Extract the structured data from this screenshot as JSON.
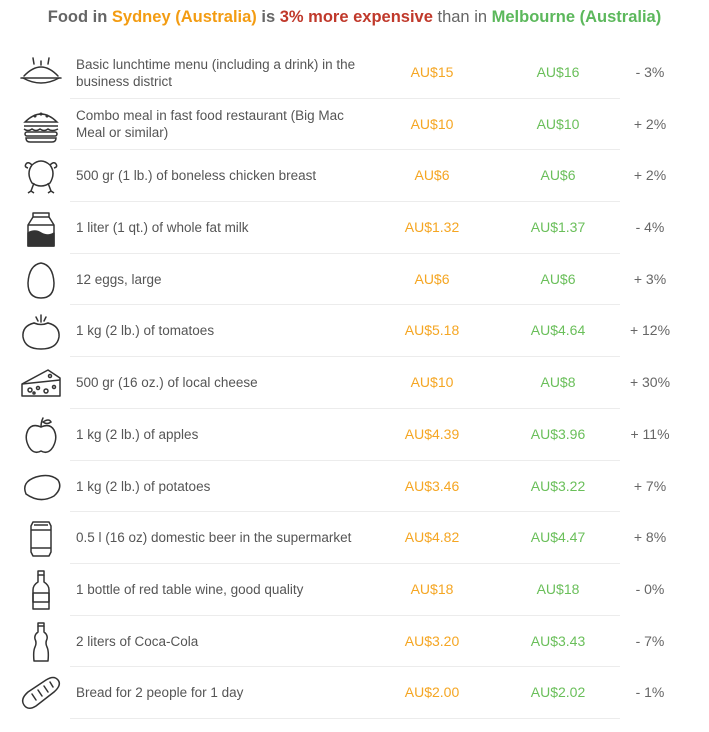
{
  "header": {
    "title_parts": {
      "p1": "Food in ",
      "city1": "Sydney (Australia)",
      "p2": " is ",
      "pct": "3% more expensive",
      "p3": " than in ",
      "city2": "Melbourne (Australia)"
    }
  },
  "colors": {
    "city1": "#f39c12",
    "city2": "#5cb85c",
    "emphasis": "#c0392b"
  },
  "rows": [
    {
      "icon": "lunch-plate-icon",
      "label": "Basic lunchtime menu (including a drink) in the business district",
      "price1": "AU$15",
      "price2": "AU$16",
      "diff": "- 3%"
    },
    {
      "icon": "burger-icon",
      "label": "Combo meal in fast food restaurant (Big Mac Meal or similar)",
      "price1": "AU$10",
      "price2": "AU$10",
      "diff": "+ 2%"
    },
    {
      "icon": "chicken-icon",
      "label": "500 gr (1 lb.) of boneless chicken breast",
      "price1": "AU$6",
      "price2": "AU$6",
      "diff": "+ 2%"
    },
    {
      "icon": "milk-carton-icon",
      "label": "1 liter (1 qt.) of whole fat milk",
      "price1": "AU$1.32",
      "price2": "AU$1.37",
      "diff": "- 4%"
    },
    {
      "icon": "egg-icon",
      "label": "12 eggs, large",
      "price1": "AU$6",
      "price2": "AU$6",
      "diff": "+ 3%"
    },
    {
      "icon": "tomato-icon",
      "label": "1 kg (2 lb.) of tomatoes",
      "price1": "AU$5.18",
      "price2": "AU$4.64",
      "diff": "+ 12%"
    },
    {
      "icon": "cheese-icon",
      "label": "500 gr (16 oz.) of local cheese",
      "price1": "AU$10",
      "price2": "AU$8",
      "diff": "+ 30%"
    },
    {
      "icon": "apple-icon",
      "label": "1 kg (2 lb.) of apples",
      "price1": "AU$4.39",
      "price2": "AU$3.96",
      "diff": "+ 11%"
    },
    {
      "icon": "potato-icon",
      "label": "1 kg (2 lb.) of potatoes",
      "price1": "AU$3.46",
      "price2": "AU$3.22",
      "diff": "+ 7%"
    },
    {
      "icon": "beer-can-icon",
      "label": "0.5 l (16 oz) domestic beer in the supermarket",
      "price1": "AU$4.82",
      "price2": "AU$4.47",
      "diff": "+ 8%"
    },
    {
      "icon": "wine-bottle-icon",
      "label": "1 bottle of red table wine, good quality",
      "price1": "AU$18",
      "price2": "AU$18",
      "diff": "- 0%"
    },
    {
      "icon": "soda-bottle-icon",
      "label": "2 liters of Coca-Cola",
      "price1": "AU$3.20",
      "price2": "AU$3.43",
      "diff": "- 7%"
    },
    {
      "icon": "bread-icon",
      "label": "Bread for 2 people for 1 day",
      "price1": "AU$2.00",
      "price2": "AU$2.02",
      "diff": "- 1%"
    }
  ]
}
